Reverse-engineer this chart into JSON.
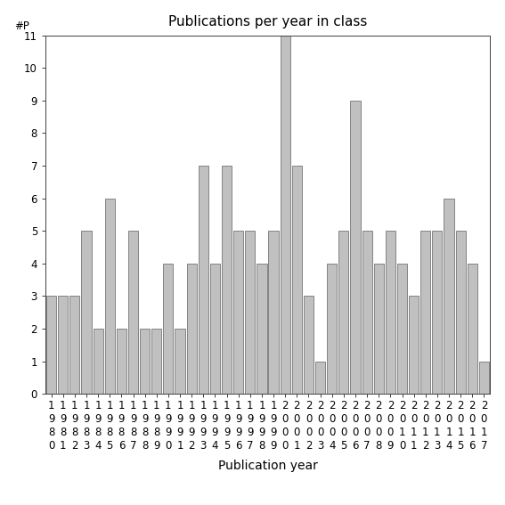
{
  "years": [
    1980,
    1981,
    1982,
    1983,
    1984,
    1985,
    1986,
    1987,
    1988,
    1989,
    1990,
    1991,
    1992,
    1993,
    1994,
    1995,
    1996,
    1997,
    1998,
    1999,
    2000,
    2001,
    2002,
    2003,
    2004,
    2005,
    2006,
    2007,
    2008,
    2009,
    2010,
    2011,
    2012,
    2013,
    2014,
    2015,
    2016,
    2017
  ],
  "values": [
    3,
    3,
    3,
    5,
    2,
    6,
    2,
    5,
    2,
    2,
    4,
    2,
    4,
    7,
    4,
    7,
    5,
    5,
    4,
    5,
    11,
    7,
    3,
    1,
    4,
    5,
    9,
    5,
    4,
    5,
    4,
    3,
    5,
    5,
    6,
    5,
    4,
    1
  ],
  "bar_color": "#c0c0c0",
  "bar_edge_color": "#606060",
  "title": "Publications per year in class",
  "xlabel": "Publication year",
  "ylabel": "#P",
  "ylim": [
    0,
    11
  ],
  "yticks": [
    0,
    1,
    2,
    3,
    4,
    5,
    6,
    7,
    8,
    9,
    10,
    11
  ],
  "bg_color": "#ffffff",
  "title_fontsize": 11,
  "axis_label_fontsize": 10,
  "tick_fontsize": 8.5
}
